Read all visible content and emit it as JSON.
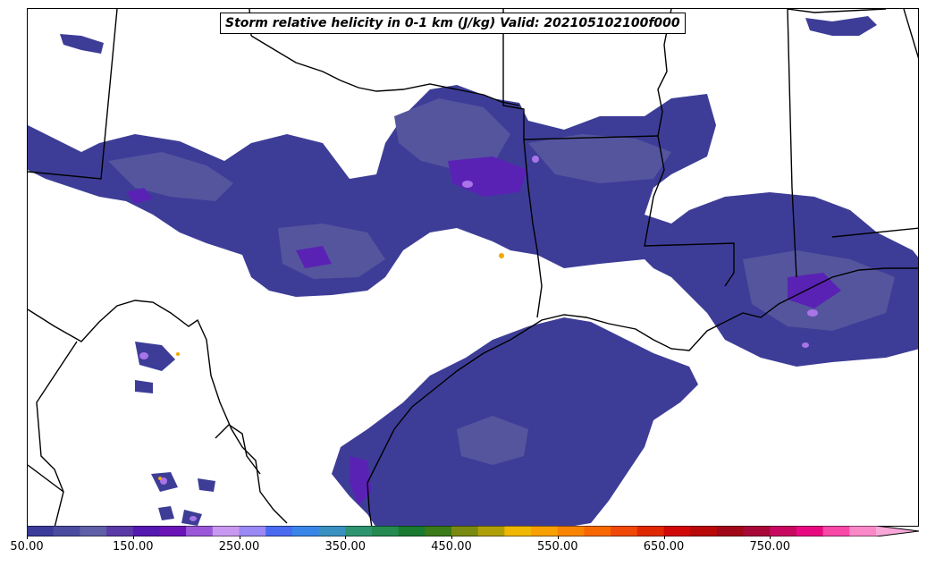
{
  "title": "Storm relative helicity in 0-1 km (J/kg) Valid: 202105102100f000",
  "colorbar": {
    "min": 50,
    "max": 850,
    "step": 25,
    "extend": "max",
    "colors": [
      "#3b3b9a",
      "#4b4ba0",
      "#5f5fa8",
      "#5a3aa6",
      "#5518b0",
      "#6a14b8",
      "#9a58d8",
      "#c898f0",
      "#9a88f4",
      "#4a6af0",
      "#3a86e8",
      "#3a90c0",
      "#2e9470",
      "#248a50",
      "#1a7a30",
      "#3a7a18",
      "#7a8a10",
      "#b0a008",
      "#f0b800",
      "#f8a000",
      "#f88400",
      "#f86800",
      "#f04808",
      "#e02800",
      "#d00808",
      "#b80808",
      "#a00818",
      "#a80838",
      "#c80860",
      "#e80880",
      "#f848a8",
      "#f888c8"
    ],
    "over_color": "#f8a8d8",
    "ticks": [
      "50.00",
      "150.00",
      "250.00",
      "350.00",
      "450.00",
      "550.00",
      "650.00",
      "750.00"
    ]
  },
  "chart_data": {
    "type": "heatmap",
    "title": "Storm relative helicity in 0-1 km (J/kg) Valid: 202105102100f000",
    "variable": "Storm relative helicity in 0-1 km",
    "units": "J/kg",
    "valid": "202105102100f000",
    "colorbar_range": [
      50,
      850
    ],
    "colorbar_step": 25,
    "colorbar_ticks": [
      50,
      150,
      250,
      350,
      450,
      550,
      650,
      750
    ]
  },
  "layers": {
    "low": "#3d3d98",
    "mid": "#55559e",
    "high": "#6a6aa8",
    "core": "#5a22b4",
    "peak": "#a874e8",
    "hot": "#f0a800",
    "border": "#000000"
  }
}
